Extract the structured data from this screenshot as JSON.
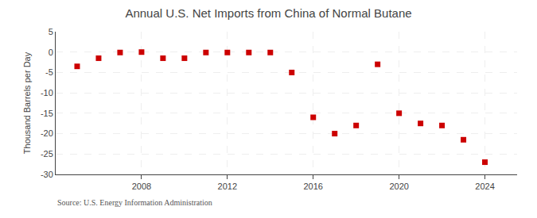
{
  "chart_data": {
    "type": "scatter",
    "title": "Annual U.S. Net Imports from China of Normal Butane",
    "ylabel": "Thousand Barrels per Day",
    "annotations": [
      "Source: U.S. Energy Information Administration"
    ],
    "x": [
      2005,
      2006,
      2007,
      2008,
      2009,
      2010,
      2011,
      2012,
      2013,
      2014,
      2015,
      2016,
      2017,
      2018,
      2019,
      2020,
      2021,
      2022,
      2023,
      2024
    ],
    "values": [
      -3.5,
      -1.5,
      -0.1,
      0.0,
      -1.5,
      -1.5,
      -0.1,
      -0.1,
      -0.1,
      -0.1,
      -5.0,
      -16.0,
      -20.0,
      -18.0,
      -3.0,
      -15.0,
      -17.5,
      -18.0,
      -21.5,
      -27.0
    ],
    "color": "#cc0000",
    "marker": "square",
    "xlim": [
      2004.0,
      2025.5
    ],
    "xticks": [
      2008,
      2012,
      2016,
      2020,
      2024
    ],
    "ylim": [
      -30,
      5
    ],
    "yticks": [
      5,
      0,
      -5,
      -10,
      -15,
      -20,
      -25,
      -30
    ],
    "grid": true
  }
}
